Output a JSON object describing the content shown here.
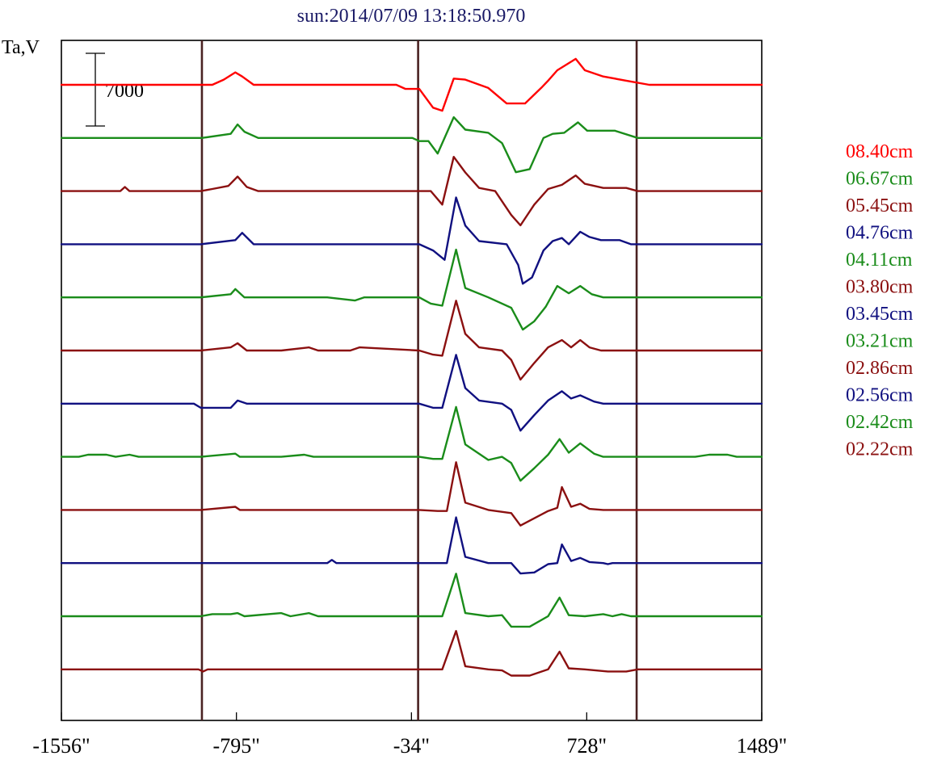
{
  "chart_data": {
    "type": "line",
    "title": "sun:2014/07/09 13:18:50.970",
    "ylabel": "Ta,V",
    "xlabel": "",
    "x_ticks": [
      -1556,
      -795,
      -34,
      728,
      1489
    ],
    "x_tick_labels": [
      "-1556\"",
      "-795\"",
      "-34\"",
      "728\"",
      "1489\""
    ],
    "xlim": [
      -1556,
      1489
    ],
    "scale_bar_label": "7000",
    "scale_bar_value": 7000,
    "vertical_markers": [
      -945,
      -5,
      945
    ],
    "legend_position": "right",
    "series": [
      {
        "name": "08.40cm",
        "color": "#ff0000",
        "points": [
          [
            -1556,
            0
          ],
          [
            -945,
            0
          ],
          [
            -900,
            0
          ],
          [
            -850,
            500
          ],
          [
            -800,
            1200
          ],
          [
            -770,
            800
          ],
          [
            -720,
            0
          ],
          [
            -600,
            0
          ],
          [
            -100,
            0
          ],
          [
            -60,
            -400
          ],
          [
            0,
            -400
          ],
          [
            60,
            -2200
          ],
          [
            100,
            -2500
          ],
          [
            150,
            600
          ],
          [
            200,
            500
          ],
          [
            300,
            -300
          ],
          [
            380,
            -1800
          ],
          [
            460,
            -1800
          ],
          [
            530,
            -300
          ],
          [
            560,
            400
          ],
          [
            600,
            1400
          ],
          [
            680,
            2500
          ],
          [
            720,
            1400
          ],
          [
            800,
            800
          ],
          [
            900,
            400
          ],
          [
            1000,
            0
          ],
          [
            1489,
            0
          ]
        ]
      },
      {
        "name": "06.67cm",
        "color": "#1a8c1a",
        "points": [
          [
            -1556,
            0
          ],
          [
            -945,
            0
          ],
          [
            -820,
            400
          ],
          [
            -790,
            1300
          ],
          [
            -760,
            600
          ],
          [
            -700,
            0
          ],
          [
            -30,
            0
          ],
          [
            0,
            -300
          ],
          [
            40,
            -300
          ],
          [
            80,
            -1500
          ],
          [
            150,
            2000
          ],
          [
            200,
            800
          ],
          [
            300,
            500
          ],
          [
            360,
            -500
          ],
          [
            420,
            -3300
          ],
          [
            480,
            -3000
          ],
          [
            540,
            0
          ],
          [
            580,
            400
          ],
          [
            630,
            500
          ],
          [
            690,
            1500
          ],
          [
            730,
            700
          ],
          [
            850,
            700
          ],
          [
            950,
            0
          ],
          [
            1489,
            0
          ]
        ]
      },
      {
        "name": "05.45cm",
        "color": "#8b1010",
        "points": [
          [
            -1556,
            0
          ],
          [
            -1300,
            0
          ],
          [
            -1280,
            400
          ],
          [
            -1260,
            0
          ],
          [
            -950,
            0
          ],
          [
            -900,
            200
          ],
          [
            -830,
            500
          ],
          [
            -790,
            1400
          ],
          [
            -750,
            400
          ],
          [
            -700,
            0
          ],
          [
            50,
            0
          ],
          [
            100,
            -1300
          ],
          [
            150,
            3300
          ],
          [
            200,
            1800
          ],
          [
            260,
            300
          ],
          [
            330,
            0
          ],
          [
            400,
            -2300
          ],
          [
            440,
            -3300
          ],
          [
            500,
            -1300
          ],
          [
            560,
            200
          ],
          [
            620,
            600
          ],
          [
            680,
            1500
          ],
          [
            720,
            700
          ],
          [
            800,
            300
          ],
          [
            900,
            300
          ],
          [
            950,
            0
          ],
          [
            1489,
            0
          ]
        ]
      },
      {
        "name": "04.76cm",
        "color": "#101080",
        "points": [
          [
            -1556,
            0
          ],
          [
            -950,
            0
          ],
          [
            -800,
            400
          ],
          [
            -770,
            1100
          ],
          [
            -720,
            0
          ],
          [
            0,
            0
          ],
          [
            60,
            -600
          ],
          [
            110,
            -1500
          ],
          [
            160,
            4500
          ],
          [
            200,
            1800
          ],
          [
            260,
            300
          ],
          [
            380,
            0
          ],
          [
            430,
            -2000
          ],
          [
            450,
            -3800
          ],
          [
            490,
            -3200
          ],
          [
            540,
            -600
          ],
          [
            580,
            300
          ],
          [
            620,
            600
          ],
          [
            650,
            0
          ],
          [
            700,
            1200
          ],
          [
            740,
            700
          ],
          [
            790,
            400
          ],
          [
            870,
            400
          ],
          [
            920,
            0
          ],
          [
            1489,
            0
          ]
        ]
      },
      {
        "name": "04.11cm",
        "color": "#1a8c1a",
        "points": [
          [
            -1556,
            0
          ],
          [
            -950,
            0
          ],
          [
            -820,
            300
          ],
          [
            -800,
            800
          ],
          [
            -760,
            0
          ],
          [
            -600,
            0
          ],
          [
            -400,
            0
          ],
          [
            -280,
            -300
          ],
          [
            -240,
            0
          ],
          [
            0,
            0
          ],
          [
            50,
            -600
          ],
          [
            100,
            -800
          ],
          [
            160,
            4600
          ],
          [
            200,
            900
          ],
          [
            300,
            0
          ],
          [
            400,
            -1000
          ],
          [
            450,
            -3100
          ],
          [
            500,
            -2300
          ],
          [
            550,
            -900
          ],
          [
            600,
            1100
          ],
          [
            650,
            400
          ],
          [
            700,
            1100
          ],
          [
            750,
            300
          ],
          [
            800,
            0
          ],
          [
            1489,
            0
          ]
        ]
      },
      {
        "name": "03.80cm",
        "color": "#8b1010",
        "points": [
          [
            -1556,
            0
          ],
          [
            -950,
            0
          ],
          [
            -820,
            300
          ],
          [
            -790,
            700
          ],
          [
            -750,
            0
          ],
          [
            -600,
            0
          ],
          [
            -480,
            300
          ],
          [
            -440,
            0
          ],
          [
            -300,
            0
          ],
          [
            -260,
            300
          ],
          [
            0,
            0
          ],
          [
            60,
            -400
          ],
          [
            100,
            -500
          ],
          [
            160,
            4800
          ],
          [
            200,
            1600
          ],
          [
            260,
            300
          ],
          [
            360,
            0
          ],
          [
            400,
            -900
          ],
          [
            440,
            -2800
          ],
          [
            500,
            -1200
          ],
          [
            560,
            300
          ],
          [
            620,
            1000
          ],
          [
            660,
            300
          ],
          [
            700,
            1000
          ],
          [
            740,
            300
          ],
          [
            790,
            0
          ],
          [
            1489,
            0
          ]
        ]
      },
      {
        "name": "03.45cm",
        "color": "#101080",
        "points": [
          [
            -1556,
            0
          ],
          [
            -980,
            0
          ],
          [
            -950,
            -400
          ],
          [
            -820,
            -400
          ],
          [
            -790,
            300
          ],
          [
            -750,
            0
          ],
          [
            -400,
            0
          ],
          [
            0,
            0
          ],
          [
            60,
            -400
          ],
          [
            100,
            -400
          ],
          [
            160,
            4700
          ],
          [
            200,
            1500
          ],
          [
            260,
            300
          ],
          [
            360,
            0
          ],
          [
            400,
            -600
          ],
          [
            440,
            -2600
          ],
          [
            500,
            -1100
          ],
          [
            560,
            300
          ],
          [
            620,
            1200
          ],
          [
            660,
            500
          ],
          [
            700,
            800
          ],
          [
            760,
            200
          ],
          [
            800,
            0
          ],
          [
            1489,
            0
          ]
        ]
      },
      {
        "name": "03.21cm",
        "color": "#1a8c1a",
        "points": [
          [
            -1556,
            0
          ],
          [
            -1480,
            0
          ],
          [
            -1440,
            200
          ],
          [
            -1360,
            200
          ],
          [
            -1320,
            0
          ],
          [
            -1260,
            200
          ],
          [
            -1220,
            0
          ],
          [
            -950,
            0
          ],
          [
            -800,
            300
          ],
          [
            -780,
            0
          ],
          [
            -600,
            0
          ],
          [
            -500,
            200
          ],
          [
            -460,
            0
          ],
          [
            0,
            0
          ],
          [
            60,
            -200
          ],
          [
            100,
            -200
          ],
          [
            160,
            4800
          ],
          [
            200,
            1200
          ],
          [
            300,
            -300
          ],
          [
            360,
            0
          ],
          [
            400,
            -600
          ],
          [
            440,
            -2300
          ],
          [
            500,
            -1100
          ],
          [
            560,
            200
          ],
          [
            610,
            1700
          ],
          [
            650,
            400
          ],
          [
            700,
            1300
          ],
          [
            760,
            300
          ],
          [
            800,
            0
          ],
          [
            1200,
            0
          ],
          [
            1260,
            200
          ],
          [
            1340,
            200
          ],
          [
            1380,
            0
          ],
          [
            1489,
            0
          ]
        ]
      },
      {
        "name": "02.86cm",
        "color": "#8b1010",
        "points": [
          [
            -1556,
            0
          ],
          [
            -950,
            0
          ],
          [
            -800,
            300
          ],
          [
            -780,
            0
          ],
          [
            -300,
            0
          ],
          [
            0,
            0
          ],
          [
            80,
            -100
          ],
          [
            120,
            -100
          ],
          [
            160,
            4600
          ],
          [
            200,
            700
          ],
          [
            300,
            0
          ],
          [
            400,
            -300
          ],
          [
            440,
            -1500
          ],
          [
            500,
            -800
          ],
          [
            560,
            -100
          ],
          [
            600,
            200
          ],
          [
            620,
            2200
          ],
          [
            660,
            300
          ],
          [
            700,
            600
          ],
          [
            740,
            100
          ],
          [
            800,
            0
          ],
          [
            1489,
            0
          ]
        ]
      },
      {
        "name": "02.56cm",
        "color": "#101080",
        "points": [
          [
            -1556,
            0
          ],
          [
            -950,
            0
          ],
          [
            -400,
            0
          ],
          [
            -380,
            300
          ],
          [
            -360,
            0
          ],
          [
            0,
            0
          ],
          [
            80,
            0
          ],
          [
            120,
            0
          ],
          [
            160,
            4400
          ],
          [
            200,
            600
          ],
          [
            300,
            0
          ],
          [
            400,
            0
          ],
          [
            440,
            -1000
          ],
          [
            500,
            -900
          ],
          [
            560,
            -100
          ],
          [
            600,
            0
          ],
          [
            620,
            1800
          ],
          [
            660,
            200
          ],
          [
            700,
            500
          ],
          [
            740,
            100
          ],
          [
            800,
            0
          ],
          [
            820,
            -100
          ],
          [
            840,
            0
          ],
          [
            1489,
            0
          ]
        ]
      },
      {
        "name": "02.42cm",
        "color": "#1a8c1a",
        "points": [
          [
            -1556,
            0
          ],
          [
            -950,
            0
          ],
          [
            -900,
            200
          ],
          [
            -820,
            200
          ],
          [
            -790,
            300
          ],
          [
            -760,
            0
          ],
          [
            -600,
            300
          ],
          [
            -560,
            0
          ],
          [
            -480,
            300
          ],
          [
            -440,
            0
          ],
          [
            0,
            0
          ],
          [
            100,
            0
          ],
          [
            160,
            4100
          ],
          [
            200,
            300
          ],
          [
            300,
            0
          ],
          [
            360,
            100
          ],
          [
            400,
            -1000
          ],
          [
            480,
            -1000
          ],
          [
            560,
            0
          ],
          [
            610,
            1800
          ],
          [
            650,
            100
          ],
          [
            720,
            0
          ],
          [
            800,
            200
          ],
          [
            840,
            0
          ],
          [
            880,
            200
          ],
          [
            920,
            0
          ],
          [
            1489,
            0
          ]
        ]
      },
      {
        "name": "02.22cm",
        "color": "#8b1010",
        "points": [
          [
            -1556,
            0
          ],
          [
            -960,
            0
          ],
          [
            -940,
            -200
          ],
          [
            -920,
            0
          ],
          [
            0,
            0
          ],
          [
            100,
            0
          ],
          [
            160,
            3700
          ],
          [
            200,
            300
          ],
          [
            300,
            0
          ],
          [
            360,
            -100
          ],
          [
            400,
            -600
          ],
          [
            480,
            -600
          ],
          [
            560,
            0
          ],
          [
            610,
            1700
          ],
          [
            650,
            100
          ],
          [
            720,
            0
          ],
          [
            820,
            -200
          ],
          [
            900,
            -200
          ],
          [
            950,
            0
          ],
          [
            1489,
            0
          ]
        ]
      }
    ]
  }
}
